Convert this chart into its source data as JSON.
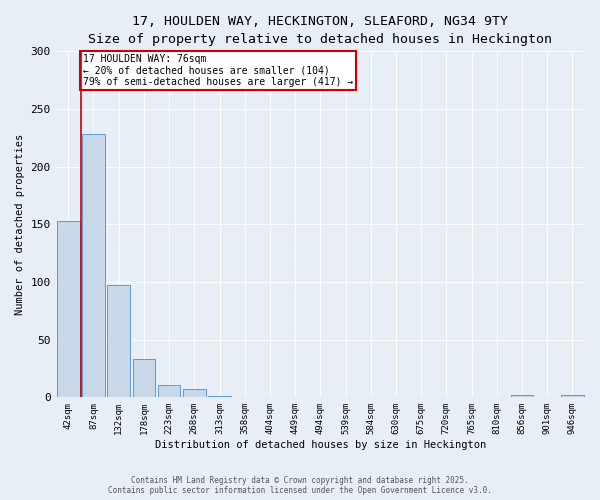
{
  "title1": "17, HOULDEN WAY, HECKINGTON, SLEAFORD, NG34 9TY",
  "title2": "Size of property relative to detached houses in Heckington",
  "xlabel": "Distribution of detached houses by size in Heckington",
  "ylabel": "Number of detached properties",
  "categories": [
    "42sqm",
    "87sqm",
    "132sqm",
    "178sqm",
    "223sqm",
    "268sqm",
    "313sqm",
    "358sqm",
    "404sqm",
    "449sqm",
    "494sqm",
    "539sqm",
    "584sqm",
    "630sqm",
    "675sqm",
    "720sqm",
    "765sqm",
    "810sqm",
    "856sqm",
    "901sqm",
    "946sqm"
  ],
  "values": [
    153,
    228,
    97,
    33,
    11,
    7,
    1,
    0,
    0,
    0,
    0,
    0,
    0,
    0,
    0,
    0,
    0,
    0,
    2,
    0,
    2
  ],
  "bar_color": "#c8d8e8",
  "bar_edge_color": "#5b9bd5",
  "red_line_x": 0.52,
  "annotation_title": "17 HOULDEN WAY: 76sqm",
  "annotation_line1": "← 20% of detached houses are smaller (104)",
  "annotation_line2": "79% of semi-detached houses are larger (417) →",
  "annotation_box_color": "#ffffff",
  "annotation_box_edge": "#cc0000",
  "ylim": [
    0,
    300
  ],
  "yticks": [
    0,
    50,
    100,
    150,
    200,
    250,
    300
  ],
  "footer1": "Contains HM Land Registry data © Crown copyright and database right 2025.",
  "footer2": "Contains public sector information licensed under the Open Government Licence v3.0.",
  "bg_color": "#e8eef5",
  "plot_bg_color": "#e8eef5",
  "title1_fontsize": 9.5,
  "title2_fontsize": 8.5
}
